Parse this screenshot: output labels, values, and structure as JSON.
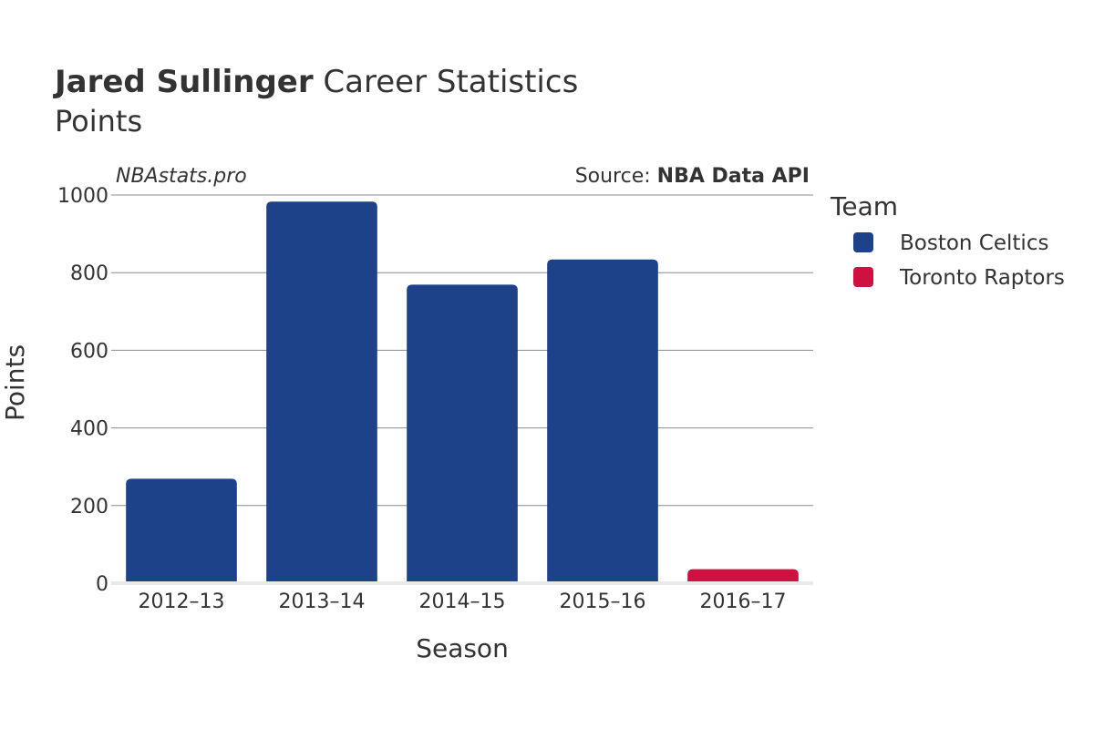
{
  "page": {
    "title_bold": "Jared Sullinger",
    "title_rest": " Career Statistics",
    "subtitle": "Points",
    "watermark": "NBAstats.pro",
    "source_prefix": "Source: ",
    "source_bold": "NBA Data API"
  },
  "chart_data": {
    "type": "bar",
    "categories": [
      "2012–13",
      "2013–14",
      "2014–15",
      "2015–16",
      "2016–17"
    ],
    "values": [
      269,
      983,
      769,
      834,
      36
    ],
    "teams": [
      "Boston Celtics",
      "Boston Celtics",
      "Boston Celtics",
      "Boston Celtics",
      "Toronto Raptors"
    ],
    "xlabel": "Season",
    "ylabel": "Points",
    "ylim": [
      0,
      1000
    ],
    "yticks": [
      0,
      200,
      400,
      600,
      800,
      1000
    ],
    "grid": true,
    "legend": {
      "title": "Team",
      "placement": "right",
      "entries": [
        {
          "name": "Boston Celtics",
          "color": "#1d4289"
        },
        {
          "name": "Toronto Raptors",
          "color": "#ce1141"
        }
      ]
    }
  }
}
